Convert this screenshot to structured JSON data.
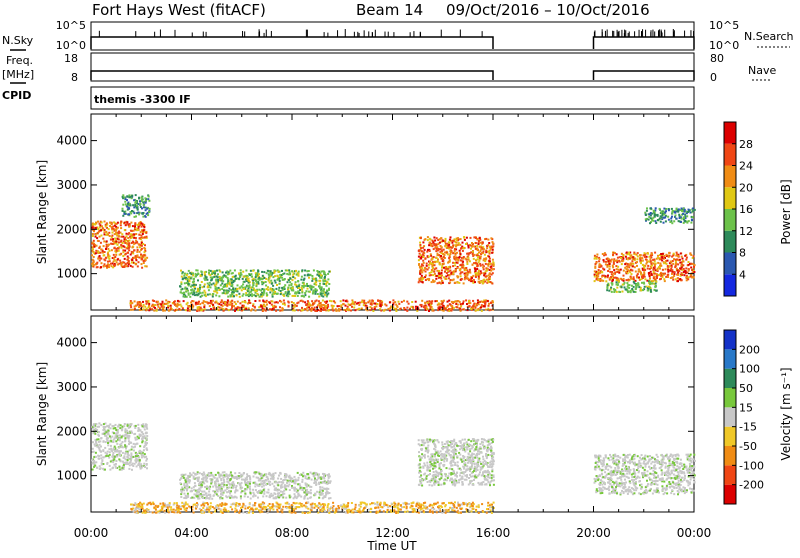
{
  "header": {
    "station": "Fort Hays West (fitACF)",
    "beam": "Beam 14",
    "date_range": "09/Oct/2016 – 10/Oct/2016"
  },
  "labels": {
    "nsky": "N.Sky",
    "nsearch": "N.Search",
    "freq": "Freq.",
    "freq_unit": "[MHz]",
    "nave": "Nave",
    "cpid": "CPID",
    "program": "themis -3300 IF",
    "xlabel": "Time UT",
    "ylabel": "Slant Range [km]",
    "power_label": "Power [dB]",
    "velocity_label": "Velocity [m s⁻¹]",
    "nsky_ticks": [
      "10^5",
      "10^0"
    ],
    "nsearch_ticks": [
      "10^5",
      "10^0"
    ],
    "freq_ticks": [
      "18",
      "8"
    ],
    "nave_ticks": [
      "80",
      "0"
    ]
  },
  "chart_data": [
    {
      "type": "heatmap",
      "panel": "power",
      "x_ticks": [
        "00:00",
        "04:00",
        "08:00",
        "12:00",
        "16:00",
        "20:00",
        "00:00"
      ],
      "xlim_hours": [
        0,
        24
      ],
      "y_ticks": [
        1000,
        2000,
        3000,
        4000
      ],
      "ylim": [
        180,
        4600
      ],
      "colorbar_ticks": [
        4,
        8,
        12,
        16,
        20,
        24,
        28
      ],
      "colorbar_colors": [
        "#1428e0",
        "#2b58b0",
        "#2d8a5a",
        "#6cc24a",
        "#e0c814",
        "#f08c14",
        "#f04614",
        "#dc0000"
      ],
      "data_gap_hours": [
        16,
        20
      ],
      "echo_regions": [
        {
          "t0": 0.0,
          "t1": 2.2,
          "r0": 1150,
          "r1": 2200,
          "level": "strong"
        },
        {
          "t0": 1.2,
          "t1": 2.3,
          "r0": 2300,
          "r1": 2800,
          "level": "weak"
        },
        {
          "t0": 1.5,
          "t1": 16.0,
          "r0": 180,
          "r1": 420,
          "level": "strong"
        },
        {
          "t0": 3.5,
          "t1": 9.5,
          "r0": 500,
          "r1": 1100,
          "level": "medium"
        },
        {
          "t0": 13.0,
          "t1": 16.0,
          "r0": 800,
          "r1": 1850,
          "level": "strong"
        },
        {
          "t0": 20.0,
          "t1": 24.0,
          "r0": 850,
          "r1": 1500,
          "level": "strong"
        },
        {
          "t0": 20.5,
          "t1": 22.5,
          "r0": 600,
          "r1": 850,
          "level": "medium"
        },
        {
          "t0": 22.0,
          "t1": 24.0,
          "r0": 2150,
          "r1": 2500,
          "level": "weak"
        }
      ]
    },
    {
      "type": "heatmap",
      "panel": "velocity",
      "x_ticks": [
        "00:00",
        "04:00",
        "08:00",
        "12:00",
        "16:00",
        "20:00",
        "00:00"
      ],
      "xlim_hours": [
        0,
        24
      ],
      "y_ticks": [
        1000,
        2000,
        3000,
        4000
      ],
      "ylim": [
        180,
        4600
      ],
      "colorbar_ticks": [
        200,
        100,
        50,
        15,
        -15,
        -50,
        -100,
        -200
      ],
      "colorbar_colors": [
        "#1432c8",
        "#2878c8",
        "#2d8a5a",
        "#78c83c",
        "#c8c8c8",
        "#f0c828",
        "#f08c14",
        "#f04614",
        "#dc0000"
      ],
      "data_gap_hours": [
        16,
        20
      ],
      "echo_regions": [
        {
          "t0": 0.0,
          "t1": 2.2,
          "r0": 1150,
          "r1": 2200,
          "level": "ground"
        },
        {
          "t0": 1.5,
          "t1": 16.0,
          "r0": 180,
          "r1": 420,
          "level": "negative"
        },
        {
          "t0": 3.5,
          "t1": 9.5,
          "r0": 500,
          "r1": 1100,
          "level": "ground"
        },
        {
          "t0": 13.0,
          "t1": 16.0,
          "r0": 800,
          "r1": 1850,
          "level": "ground"
        },
        {
          "t0": 20.0,
          "t1": 24.0,
          "r0": 600,
          "r1": 1500,
          "level": "ground"
        }
      ]
    }
  ]
}
